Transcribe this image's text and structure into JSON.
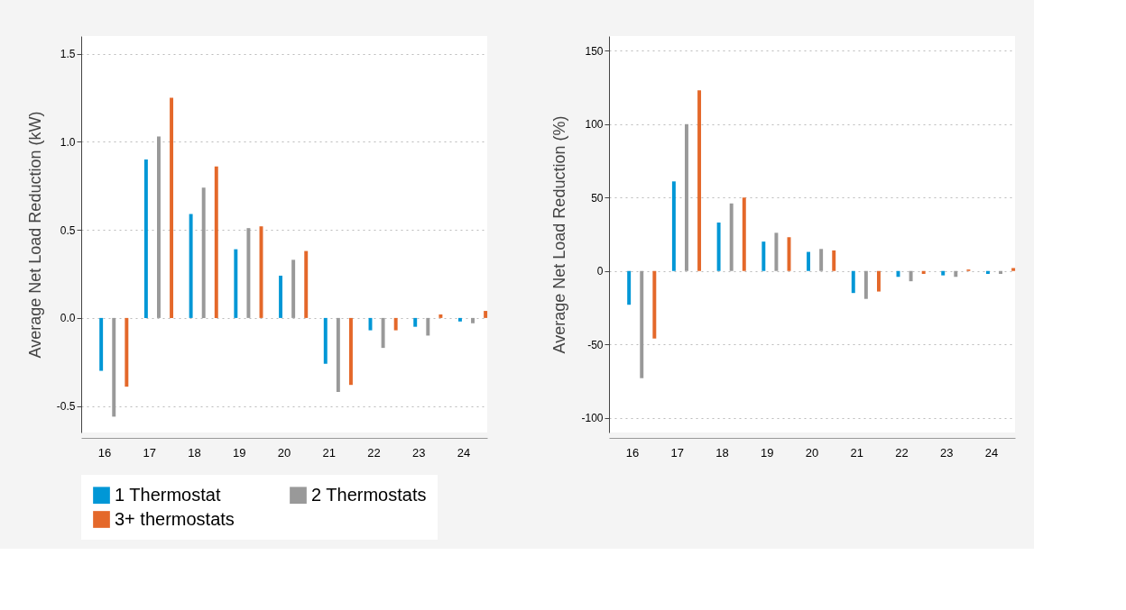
{
  "chart_data": [
    {
      "type": "bar",
      "ylabel": "Average Net Load Reduction (kW)",
      "categories": [
        "16",
        "17",
        "18",
        "19",
        "20",
        "21",
        "22",
        "23",
        "24"
      ],
      "series": [
        {
          "name": "1 Thermostat",
          "color": "#0097d6",
          "values": [
            -0.3,
            0.9,
            0.59,
            0.39,
            0.24,
            -0.26,
            -0.07,
            -0.05,
            -0.02
          ]
        },
        {
          "name": "2 Thermostats",
          "color": "#999999",
          "values": [
            -0.56,
            1.03,
            0.74,
            0.51,
            0.33,
            -0.42,
            -0.17,
            -0.1,
            -0.03
          ]
        },
        {
          "name": "3+ thermostats",
          "color": "#e4682a",
          "values": [
            -0.39,
            1.25,
            0.86,
            0.52,
            0.38,
            -0.38,
            -0.07,
            0.02,
            0.04
          ]
        }
      ],
      "ylim": [
        -0.65,
        1.6
      ],
      "yticks": [
        -0.5,
        {
          "value": 0,
          "label": "0.0"
        },
        0.5,
        {
          "value": 1,
          "label": "1.0"
        },
        1.5
      ],
      "grid": "y",
      "legend": "bottom"
    },
    {
      "type": "bar",
      "ylabel": "Average Net Load Reduction (%)",
      "categories": [
        "16",
        "17",
        "18",
        "19",
        "20",
        "21",
        "22",
        "23",
        "24"
      ],
      "series": [
        {
          "name": "1 Thermostat",
          "color": "#0097d6",
          "values": [
            -23,
            61,
            33,
            20,
            13,
            -15,
            -4,
            -3,
            -2
          ]
        },
        {
          "name": "2 Thermostats",
          "color": "#999999",
          "values": [
            -73,
            100,
            46,
            26,
            15,
            -19,
            -7,
            -4,
            -2
          ]
        },
        {
          "name": "3+ thermostats",
          "color": "#e4682a",
          "values": [
            -46,
            123,
            50,
            23,
            14,
            -14,
            -2,
            1,
            2
          ]
        }
      ],
      "ylim": [
        -110,
        160
      ],
      "yticks": [
        -100,
        -50,
        0,
        50,
        100,
        150
      ],
      "grid": "y",
      "legend": "bottom"
    }
  ]
}
